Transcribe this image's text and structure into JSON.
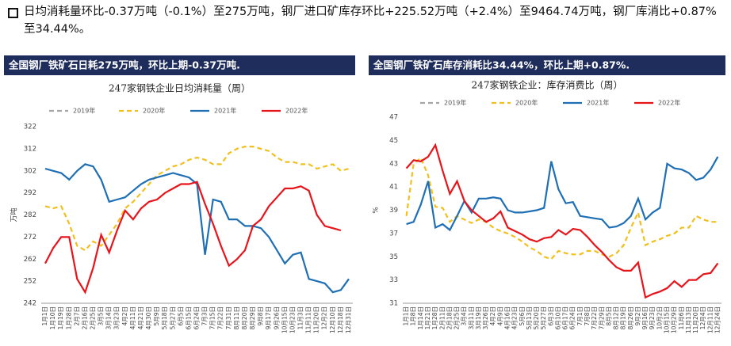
{
  "summary": "日均消耗量环比-0.37万吨（-0.1%）至275万吨，钢厂进口矿库存环比+225.52万吨（+2.4%）至9464.74万吨，钢厂库消比+0.87%至34.44%。",
  "chart_data": [
    {
      "type": "line",
      "banner": "全国钢厂铁矿石日耗275万吨，环比上期-0.37万吨.",
      "title": "247家钢铁企业日均消耗量（周）",
      "ylabel": "万吨",
      "categories": [
        "1月1日",
        "1月10日",
        "1月19日",
        "1月28日",
        "2月7日",
        "2月16日",
        "2月25日",
        "3月5日",
        "3月14日",
        "3月23日",
        "4月2日",
        "4月11日",
        "4月21日",
        "4月30日",
        "5月9日",
        "5月18日",
        "5月27日",
        "6月5日",
        "6月15日",
        "6月24日",
        "7月3日",
        "7月15日",
        "7月22日",
        "7月31日",
        "8月11日",
        "8月20日",
        "8月29日",
        "9月8日",
        "9月17日",
        "9月26日",
        "10月15日",
        "10月23日",
        "11月3日",
        "11月11日",
        "11月20日",
        "12月2日",
        "12月10日",
        "12月18日",
        "12月31日"
      ],
      "series": [
        {
          "name": "2019年",
          "color": "#a6a6a6",
          "dashed": true,
          "values": [
            null,
            null,
            null,
            null,
            null,
            null,
            null,
            null,
            null,
            null,
            null,
            null,
            null,
            null,
            null,
            null,
            null,
            null,
            null,
            null,
            null,
            null,
            null,
            null,
            null,
            null,
            null,
            null,
            null,
            null,
            null,
            null,
            null,
            null,
            null,
            null,
            null,
            null,
            null
          ]
        },
        {
          "name": "2020年",
          "color": "#f2c01e",
          "dashed": true,
          "values": [
            286,
            285,
            286,
            278,
            268,
            266,
            270,
            268,
            273,
            278,
            285,
            288,
            292,
            296,
            300,
            302,
            304,
            305,
            307,
            308,
            307,
            305,
            305,
            310,
            312,
            313,
            313,
            312,
            311,
            308,
            306,
            306,
            305,
            305,
            303,
            304,
            305,
            302,
            303
          ]
        },
        {
          "name": "2021年",
          "color": "#1f6fb5",
          "dashed": false,
          "values": [
            303,
            302,
            301,
            298,
            302,
            305,
            304,
            298,
            288,
            289,
            290,
            293,
            296,
            298,
            299,
            300,
            301,
            300,
            299,
            296,
            264,
            289,
            288,
            280,
            280,
            277,
            277,
            276,
            272,
            266,
            260,
            264,
            265,
            253,
            252,
            251,
            247,
            248,
            253
          ]
        },
        {
          "name": "2022年",
          "color": "#e8141b",
          "dashed": false,
          "values": [
            260,
            267,
            272,
            272,
            253,
            247,
            258,
            273,
            265,
            275,
            284,
            280,
            285,
            288,
            289,
            292,
            294,
            296,
            296,
            297,
            287,
            278,
            268,
            259,
            262,
            266,
            277,
            280,
            286,
            290,
            294,
            294,
            295,
            293,
            282,
            277,
            276,
            275,
            null
          ]
        }
      ],
      "ylim": [
        242,
        322
      ],
      "yticks": [
        242,
        252,
        262,
        272,
        282,
        292,
        302,
        312,
        322
      ],
      "grid": false
    },
    {
      "type": "line",
      "banner": "全国钢厂铁矿石库存消耗比34.44%，环比上期+0.87%.",
      "title": "247家钢铁企业：库存消费比（周）",
      "ylabel": "%",
      "categories": [
        "1月1日",
        "1月8日",
        "1月14日",
        "1月21日",
        "1月28日",
        "2月11日",
        "2月18日",
        "2月25日",
        "3月4日",
        "3月11日",
        "3月19日",
        "3月26日",
        "4月2日",
        "4月9日",
        "4月16日",
        "4月23日",
        "5月6日",
        "5月13日",
        "5月20日",
        "5月27日",
        "6月3日",
        "6月10日",
        "6月17日",
        "6月24日",
        "7月1日",
        "7月8日",
        "7月22日",
        "7月29日",
        "8月5日",
        "8月12日",
        "8月19日",
        "8月26日",
        "9月2日",
        "9月16日",
        "9月23日",
        "10月2日",
        "10月15日",
        "10月29日",
        "11月6日",
        "11月13日",
        "11月20日",
        "12月4日",
        "12月11日",
        "12月24日"
      ],
      "series": [
        {
          "name": "2019年",
          "color": "#a6a6a6",
          "dashed": true,
          "values": [
            null,
            null,
            null,
            null,
            null,
            null,
            null,
            null,
            null,
            null,
            null,
            null,
            null,
            null,
            null,
            null,
            null,
            null,
            null,
            null,
            null,
            null,
            null,
            null,
            null,
            null,
            null,
            null,
            null,
            null,
            null,
            null,
            null,
            null,
            null,
            null,
            null,
            null,
            null,
            null,
            null,
            null,
            null,
            null
          ]
        },
        {
          "name": "2020年",
          "color": "#f2c01e",
          "dashed": true,
          "values": [
            38.5,
            43,
            43.5,
            42,
            39.3,
            39.2,
            38,
            38.5,
            38.2,
            37.9,
            38.2,
            38,
            37.5,
            37.2,
            37,
            36.7,
            36.3,
            35.8,
            35.5,
            35,
            34.8,
            35.5,
            35.3,
            35.2,
            35.2,
            35.5,
            35.5,
            35.2,
            35,
            35.3,
            36,
            37.5,
            38.8,
            36,
            36.3,
            36.5,
            36.8,
            37,
            37.5,
            37.5,
            38.5,
            38.2,
            38,
            38
          ]
        },
        {
          "name": "2021年",
          "color": "#1f6fb5",
          "dashed": false,
          "values": [
            37.8,
            38,
            39.5,
            41.5,
            37.5,
            37.8,
            37.3,
            38.5,
            39.8,
            38.8,
            40,
            40,
            40.1,
            40,
            39,
            38.8,
            38.8,
            38.9,
            39,
            39.2,
            43.2,
            40.8,
            39.6,
            39.7,
            38.5,
            38.4,
            38.3,
            38.2,
            37.5,
            37.6,
            37.9,
            38.5,
            40,
            38.2,
            38.8,
            39.2,
            43,
            42.6,
            42.5,
            42.2,
            41.6,
            41.8,
            42.5,
            43.6
          ]
        },
        {
          "name": "2022年",
          "color": "#e8141b",
          "dashed": false,
          "values": [
            42.6,
            43.3,
            43.2,
            43.6,
            44.6,
            42.4,
            40.4,
            41.5,
            39.8,
            39,
            38.5,
            38,
            38.3,
            38.9,
            37.5,
            37.2,
            36.9,
            36.5,
            36.3,
            36.6,
            36.7,
            37.3,
            36.9,
            37.4,
            37.3,
            36.7,
            36,
            35.4,
            34.7,
            34.1,
            33.8,
            33.8,
            34.5,
            31.5,
            31.8,
            32,
            32.3,
            32.9,
            32.4,
            33,
            33,
            33.5,
            33.6,
            34.44
          ]
        }
      ],
      "ylim": [
        31,
        47
      ],
      "yticks": [
        31,
        33,
        35,
        37,
        39,
        41,
        43,
        45,
        47
      ],
      "grid": false
    }
  ]
}
